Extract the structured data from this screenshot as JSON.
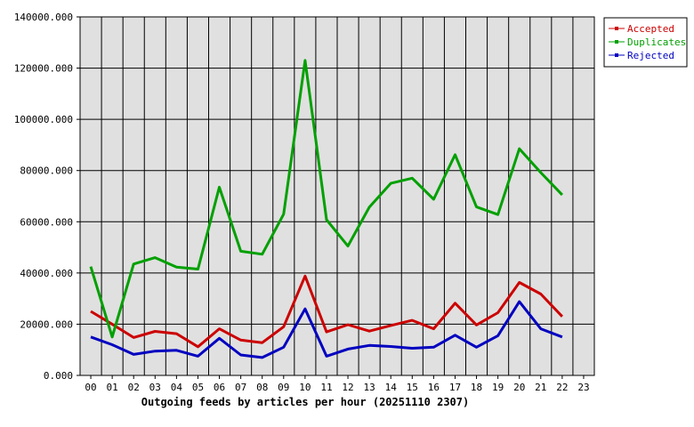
{
  "chart_data": {
    "type": "line",
    "title": "Outgoing feeds by articles per hour (20251110 2307)",
    "categories": [
      "00",
      "01",
      "02",
      "03",
      "04",
      "05",
      "06",
      "07",
      "08",
      "09",
      "10",
      "11",
      "12",
      "13",
      "14",
      "15",
      "16",
      "17",
      "18",
      "19",
      "20",
      "21",
      "22",
      "23"
    ],
    "ylim": [
      0,
      140000
    ],
    "yticks": [
      0,
      20000,
      40000,
      60000,
      80000,
      100000,
      120000,
      140000
    ],
    "ytick_labels": [
      "0.000",
      "20000.000",
      "40000.000",
      "60000.000",
      "80000.000",
      "100000.000",
      "120000.000",
      "140000.000"
    ],
    "grid": true,
    "legend_position": "top-right",
    "series": [
      {
        "name": "Accepted",
        "color": "#cc0000",
        "values": [
          25000,
          20000,
          14800,
          17200,
          16300,
          11200,
          18200,
          13800,
          12800,
          19000,
          38800,
          17000,
          19800,
          17300,
          19500,
          21500,
          18200,
          28200,
          19700,
          24500,
          36300,
          31800,
          23000,
          null
        ]
      },
      {
        "name": "Duplicates",
        "color": "#00a000",
        "values": [
          42500,
          15000,
          43500,
          46000,
          42300,
          41500,
          73500,
          48500,
          47300,
          63000,
          123000,
          60800,
          50500,
          65700,
          75000,
          77000,
          68800,
          86200,
          65800,
          62800,
          88500,
          79200,
          70500,
          null
        ]
      },
      {
        "name": "Rejected",
        "color": "#0000c0",
        "values": [
          15000,
          12000,
          8200,
          9500,
          9800,
          7500,
          14500,
          8000,
          7000,
          11000,
          26000,
          7500,
          10300,
          11700,
          11300,
          10600,
          11000,
          15700,
          11000,
          15500,
          28800,
          18200,
          15000,
          null
        ]
      }
    ]
  }
}
